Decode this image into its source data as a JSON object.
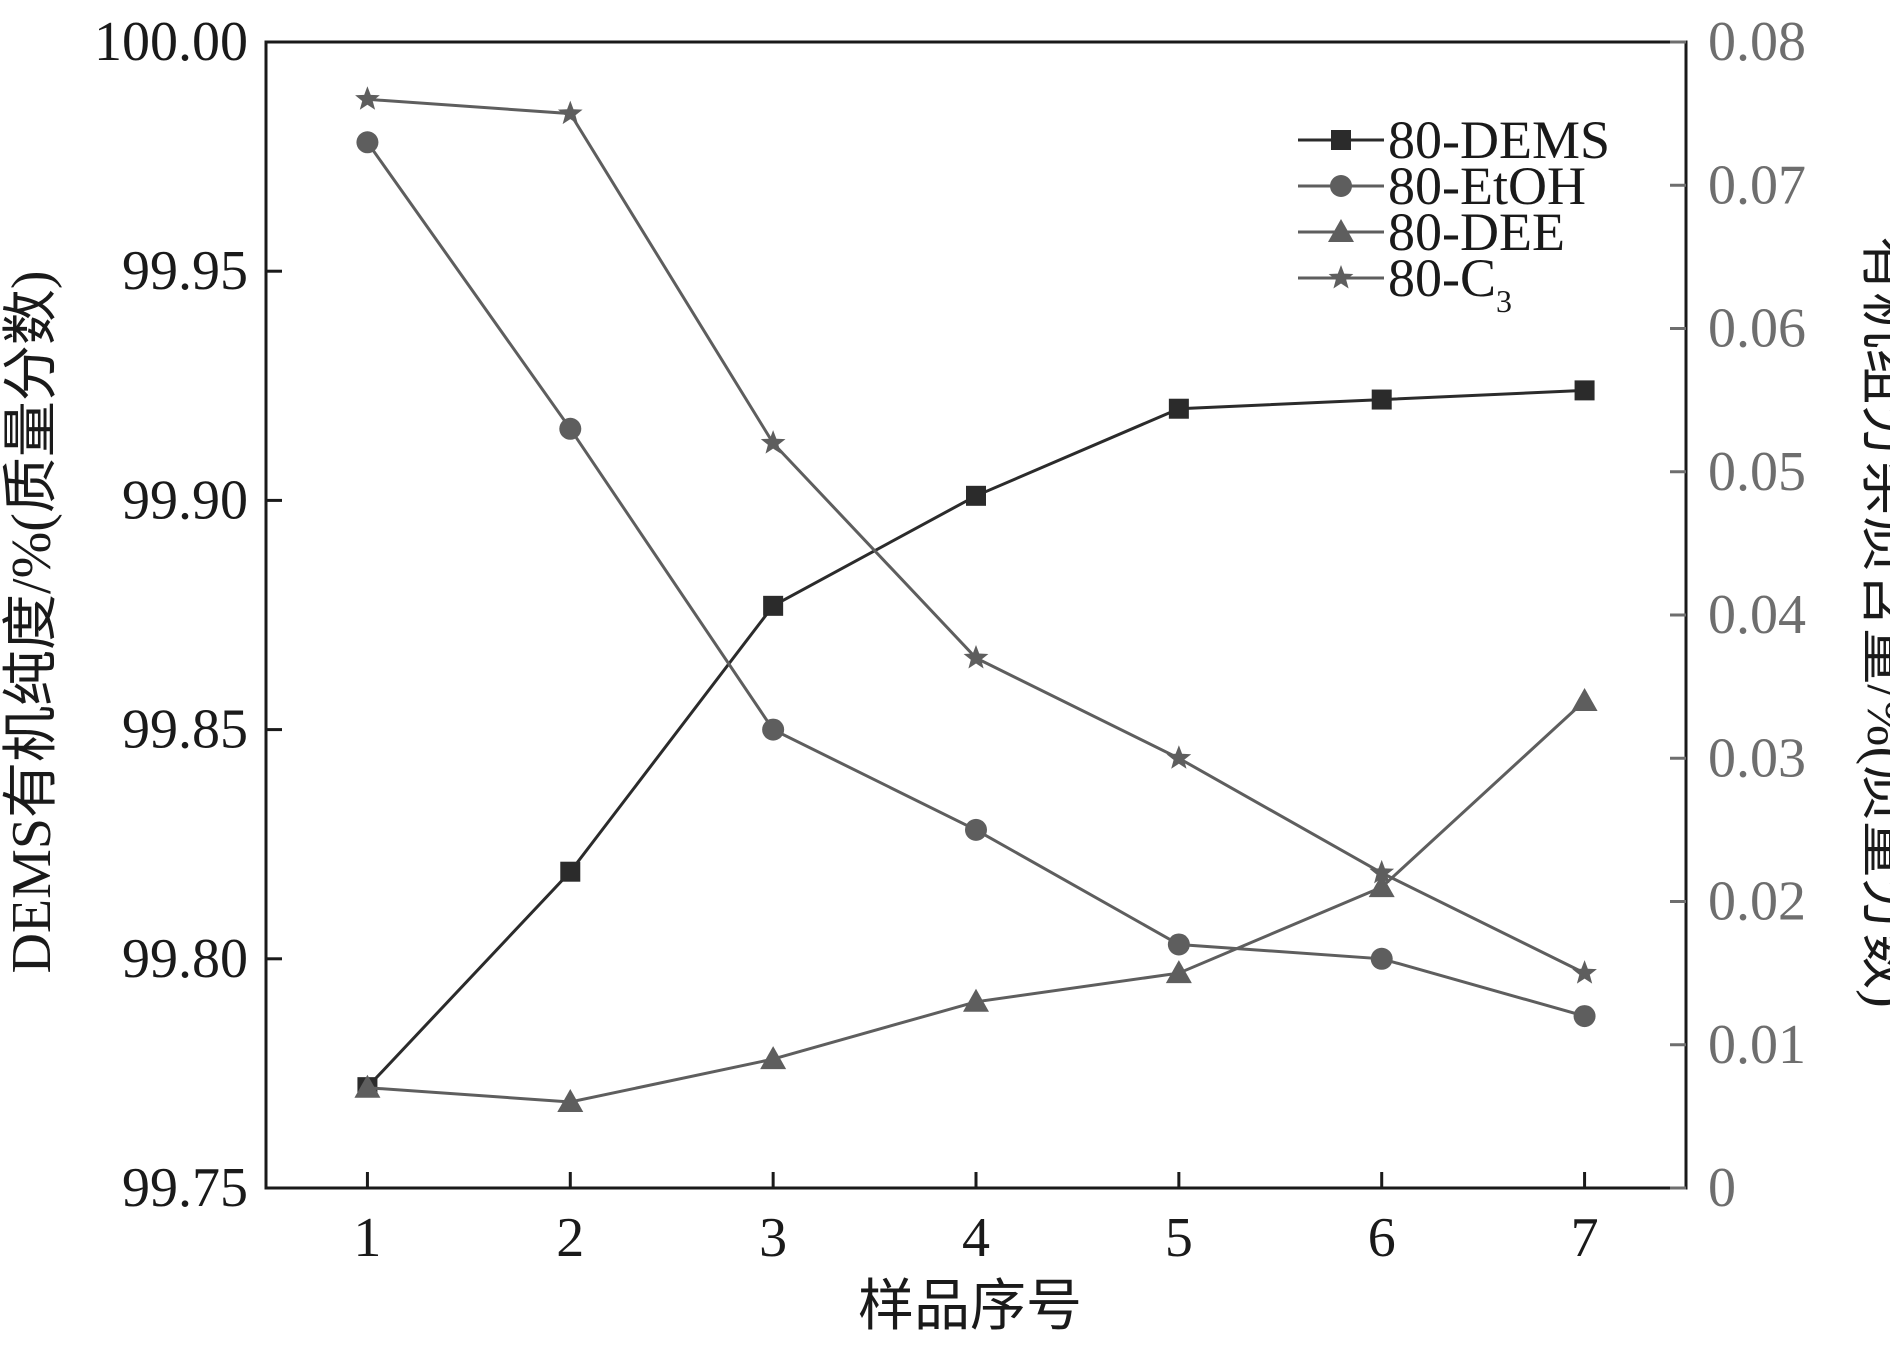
{
  "chart_data": {
    "type": "line",
    "xlabel": "样品序号",
    "ylabel_left": "DEMS有机纯度/%(质量分数)",
    "ylabel_right": "有机组分杂质含量/%(质量分数)",
    "x": [
      1,
      2,
      3,
      4,
      5,
      6,
      7
    ],
    "x_ticks": [
      "1",
      "2",
      "3",
      "4",
      "5",
      "6",
      "7"
    ],
    "xlim": [
      0.5,
      7.5
    ],
    "ylim_left": [
      99.75,
      100.0
    ],
    "ylim_right": [
      0,
      0.08
    ],
    "left_ticks": [
      "99.75",
      "99.80",
      "99.85",
      "99.90",
      "99.95",
      "100.00"
    ],
    "right_ticks": [
      "0",
      "0.01",
      "0.02",
      "0.03",
      "0.04",
      "0.05",
      "0.06",
      "0.07",
      "0.08"
    ],
    "legend_position": "top-right",
    "grid": false,
    "series": [
      {
        "name": "80-DEMS",
        "axis": "left",
        "marker": "square",
        "color": "#2b2b2b",
        "values": [
          99.772,
          99.819,
          99.877,
          99.901,
          99.92,
          99.922,
          99.924
        ]
      },
      {
        "name": "80-EtOH",
        "axis": "right",
        "marker": "circle",
        "color": "#5e5e5e",
        "values": [
          0.073,
          0.053,
          0.032,
          0.025,
          0.017,
          0.016,
          0.012
        ]
      },
      {
        "name": "80-DEE",
        "axis": "right",
        "marker": "triangle",
        "color": "#5e5e5e",
        "values": [
          0.007,
          0.006,
          0.009,
          0.013,
          0.015,
          0.021,
          0.034
        ]
      },
      {
        "name": "80-C3",
        "axis": "right",
        "marker": "star",
        "color": "#5e5e5e",
        "values": [
          0.076,
          0.075,
          0.052,
          0.037,
          0.03,
          0.022,
          0.015
        ]
      }
    ]
  }
}
